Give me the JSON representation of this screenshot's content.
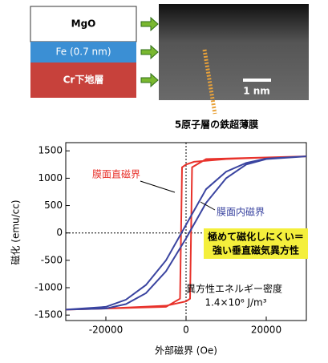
{
  "diagram": {
    "layers": [
      "MgO",
      "Fe (0.7 nm)",
      "Cr下地層"
    ],
    "scale_bar": "1 nm",
    "caption": "5原子層の鉄超薄膜"
  },
  "chart_data": {
    "type": "line",
    "x_label": "外部磁界 (Oe)",
    "y_label": "磁化 (emu/cc)",
    "xlim": [
      -30000,
      30000
    ],
    "ylim": [
      -1600,
      1650
    ],
    "xticks": [
      -20000,
      0,
      20000
    ],
    "yticks": [
      -1500,
      -1000,
      -500,
      0,
      500,
      1000,
      1500
    ],
    "series": [
      {
        "name": "膜面直磁界",
        "color": "#e8322b",
        "x": [
          30000,
          20000,
          10000,
          2000,
          0,
          -1000,
          -1500,
          -5000,
          -20000,
          -30000,
          -20000,
          -5000,
          0,
          1000,
          1500,
          5000,
          20000,
          30000
        ],
        "values": [
          1400,
          1380,
          1350,
          1300,
          1250,
          1200,
          -1200,
          -1350,
          -1380,
          -1400,
          -1380,
          -1330,
          -1250,
          -1200,
          1200,
          1350,
          1380,
          1400
        ]
      },
      {
        "name": "膜面内磁界",
        "color": "#3a44a0",
        "x": [
          -30000,
          -20000,
          -15000,
          -10000,
          -5000,
          0,
          5000,
          10000,
          15000,
          20000,
          30000,
          20000,
          15000,
          10000,
          5000,
          0,
          -5000,
          -10000,
          -15000,
          -20000,
          -30000
        ],
        "values": [
          -1400,
          -1380,
          -1300,
          -1100,
          -700,
          -100,
          550,
          1000,
          1250,
          1350,
          1400,
          1360,
          1280,
          1120,
          800,
          150,
          -500,
          -950,
          -1220,
          -1350,
          -1400
        ]
      }
    ],
    "annotations": [
      "極めて磁化しにくい＝",
      "強い垂直磁気異方性",
      "異方性エネルギー密度",
      "1.4×10⁶ J/m³"
    ]
  }
}
